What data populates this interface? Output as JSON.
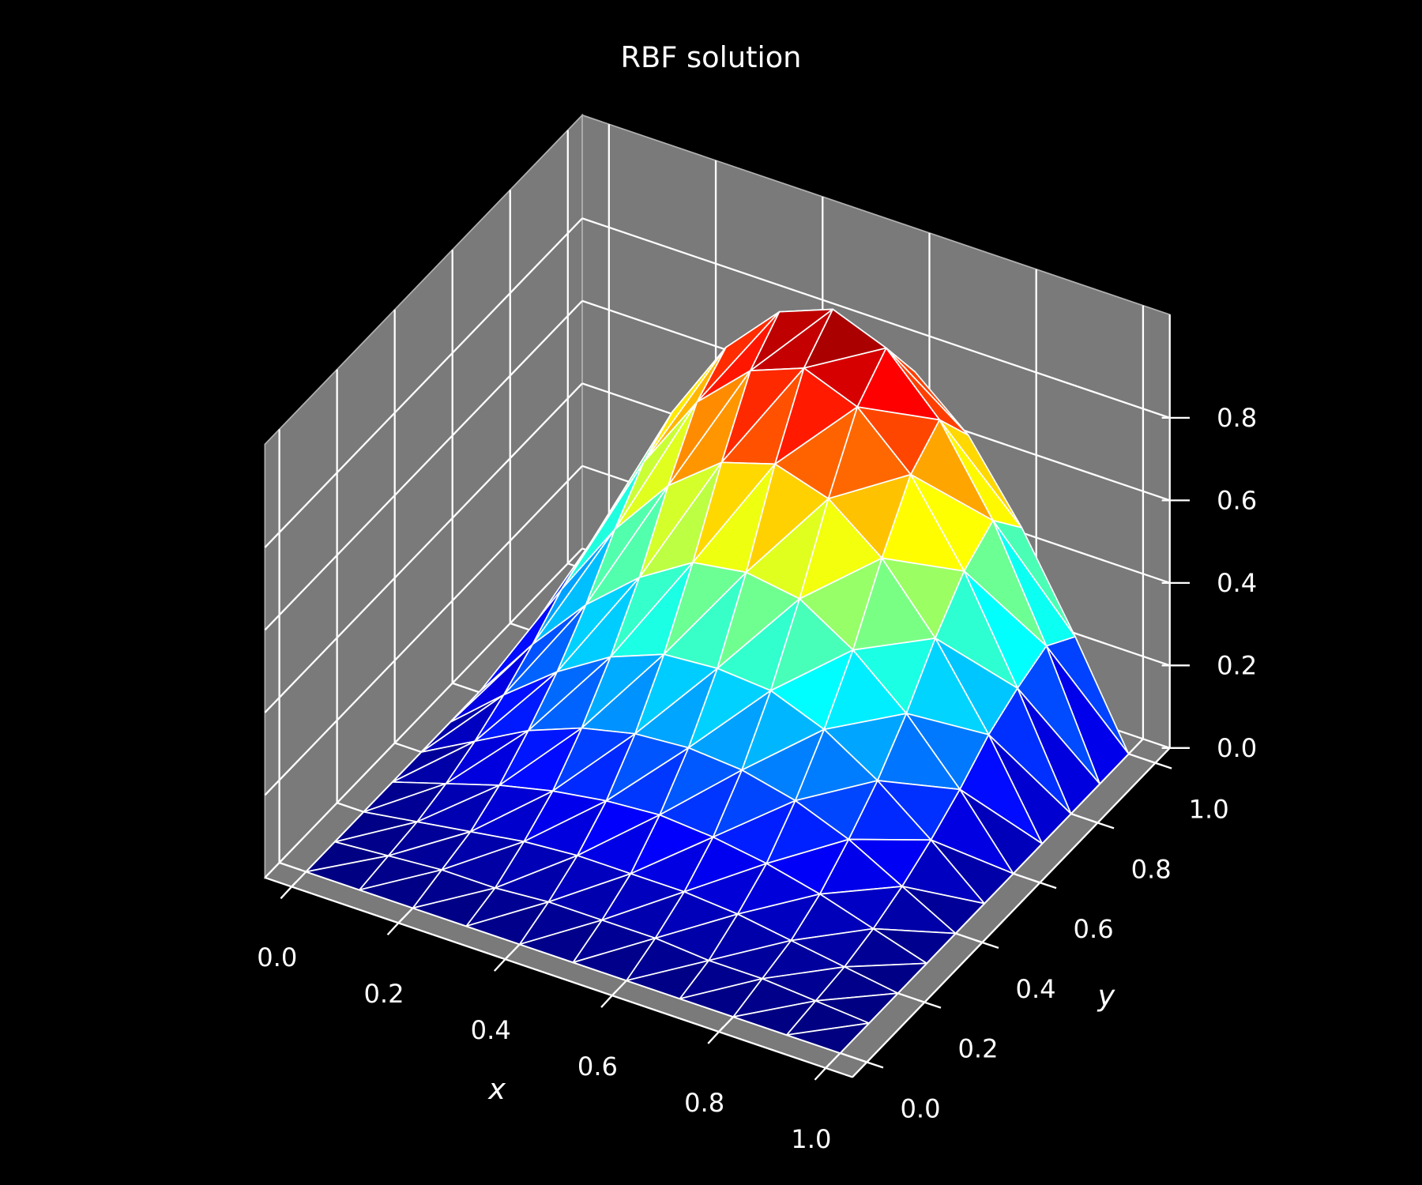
{
  "chart_data": {
    "type": "surface3d",
    "title": "RBF solution",
    "xlabel": "x",
    "ylabel": "y",
    "x": [
      0,
      0.1,
      0.2,
      0.3,
      0.4,
      0.5,
      0.6,
      0.7,
      0.8,
      0.9,
      1
    ],
    "y": [
      0,
      0.1,
      0.2,
      0.3,
      0.4,
      0.5,
      0.6,
      0.7,
      0.8,
      0.9,
      1
    ],
    "z": [
      [
        0,
        0,
        0,
        0,
        0,
        0,
        0,
        0,
        0,
        0,
        0
      ],
      [
        0,
        0.01,
        0.02,
        0.02,
        0.03,
        0.03,
        0.03,
        0.02,
        0.02,
        0.01,
        0
      ],
      [
        0,
        0.02,
        0.04,
        0.06,
        0.07,
        0.07,
        0.07,
        0.06,
        0.04,
        0.02,
        0
      ],
      [
        0,
        0.04,
        0.08,
        0.11,
        0.13,
        0.14,
        0.13,
        0.11,
        0.08,
        0.04,
        0
      ],
      [
        0,
        0.07,
        0.14,
        0.19,
        0.22,
        0.23,
        0.22,
        0.19,
        0.14,
        0.07,
        0
      ],
      [
        0,
        0.11,
        0.21,
        0.29,
        0.34,
        0.35,
        0.34,
        0.29,
        0.21,
        0.11,
        0
      ],
      [
        0,
        0.16,
        0.3,
        0.41,
        0.49,
        0.51,
        0.49,
        0.41,
        0.3,
        0.16,
        0
      ],
      [
        0,
        0.22,
        0.41,
        0.56,
        0.66,
        0.7,
        0.66,
        0.56,
        0.41,
        0.22,
        0
      ],
      [
        0,
        0.26,
        0.5,
        0.69,
        0.81,
        0.86,
        0.81,
        0.69,
        0.5,
        0.26,
        0
      ],
      [
        0,
        0.29,
        0.55,
        0.75,
        0.88,
        0.93,
        0.88,
        0.75,
        0.55,
        0.29,
        0
      ],
      [
        0,
        0.24,
        0.46,
        0.64,
        0.75,
        0.79,
        0.75,
        0.64,
        0.46,
        0.24,
        0
      ]
    ],
    "xlim": [
      -0.05,
      1.05
    ],
    "ylim": [
      -0.05,
      1.05
    ],
    "zlim": [
      0,
      1.05
    ],
    "xticks": [
      {
        "value": 0,
        "label": "0.0"
      },
      0.2,
      0.4,
      0.6,
      0.8,
      {
        "value": 1,
        "label": "1.0"
      }
    ],
    "yticks": [
      {
        "value": 0,
        "label": "0.0"
      },
      0.2,
      0.4,
      0.6,
      0.8,
      {
        "value": 1,
        "label": "1.0"
      }
    ],
    "zticks": [
      {
        "value": 0,
        "label": "0.0"
      },
      0.2,
      0.4,
      0.6,
      0.8
    ],
    "colormap": "jet",
    "pane_color": "#7a7a7a",
    "background": "#000000"
  }
}
